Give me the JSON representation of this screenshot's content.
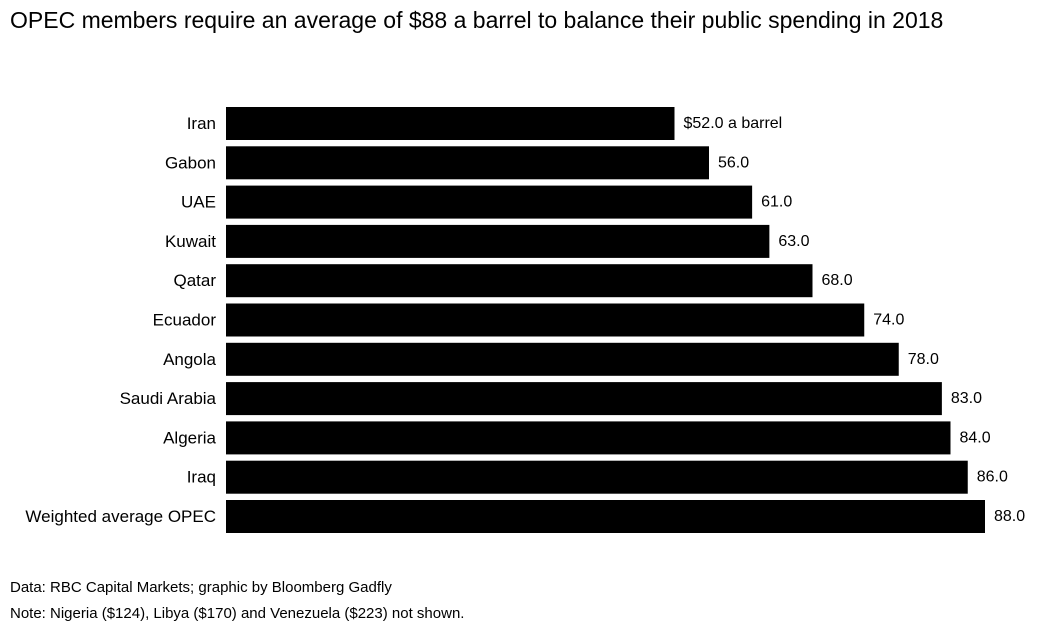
{
  "chart_data": {
    "type": "bar",
    "orientation": "horizontal",
    "title": "OPEC members require an average of $88 a barrel to balance their public spending in 2018",
    "categories": [
      "Iran",
      "Gabon",
      "UAE",
      "Kuwait",
      "Qatar",
      "Ecuador",
      "Angola",
      "Saudi Arabia",
      "Algeria",
      "Iraq",
      "Weighted average OPEC"
    ],
    "values": [
      52.0,
      56.0,
      61.0,
      63.0,
      68.0,
      74.0,
      78.0,
      83.0,
      84.0,
      86.0,
      88.0
    ],
    "value_labels": [
      "$52.0 a barrel",
      "56.0",
      "61.0",
      "63.0",
      "68.0",
      "74.0",
      "78.0",
      "83.0",
      "84.0",
      "86.0",
      "88.0"
    ],
    "xlim": [
      0,
      88
    ],
    "grid": false,
    "bar_color": "#000000",
    "source": "Data: RBC Capital Markets; graphic by Bloomberg Gadfly",
    "note": "Note: Nigeria ($124), Libya ($170) and Venezuela ($223) not shown."
  }
}
